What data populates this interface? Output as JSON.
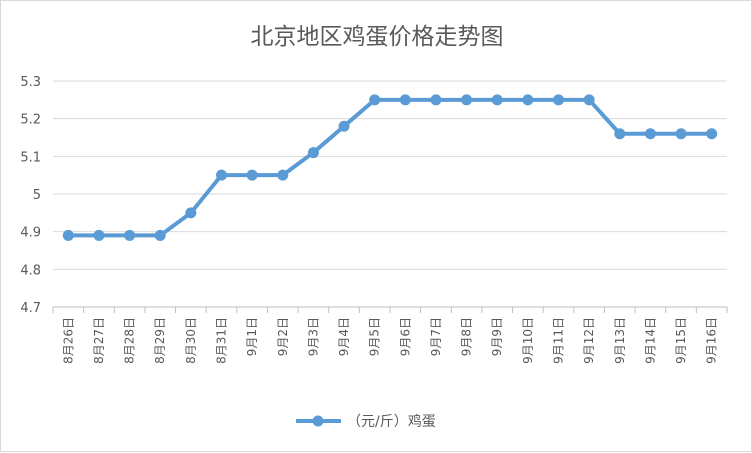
{
  "chart_data": {
    "type": "line",
    "title": "北京地区鸡蛋价格走势图",
    "xlabel": "",
    "ylabel": "",
    "categories": [
      "8月26日",
      "8月27日",
      "8月28日",
      "8月29日",
      "8月30日",
      "8月31日",
      "9月1日",
      "9月2日",
      "9月3日",
      "9月4日",
      "9月5日",
      "9月6日",
      "9月7日",
      "9月8日",
      "9月9日",
      "9月10日",
      "9月11日",
      "9月12日",
      "9月13日",
      "9月14日",
      "9月15日",
      "9月16日"
    ],
    "series": [
      {
        "name": "（元/斤）鸡蛋",
        "values": [
          4.89,
          4.89,
          4.89,
          4.89,
          4.95,
          5.05,
          5.05,
          5.05,
          5.11,
          5.18,
          5.25,
          5.25,
          5.25,
          5.25,
          5.25,
          5.25,
          5.25,
          5.25,
          5.16,
          5.16,
          5.16,
          5.16
        ]
      }
    ],
    "ylim": [
      4.7,
      5.3
    ],
    "yticks": [
      "4.7",
      "4.8",
      "4.9",
      "5",
      "5.1",
      "5.2",
      "5.3"
    ],
    "grid": "horizontal",
    "legend": "bottom",
    "color": "#5b9bd5"
  }
}
